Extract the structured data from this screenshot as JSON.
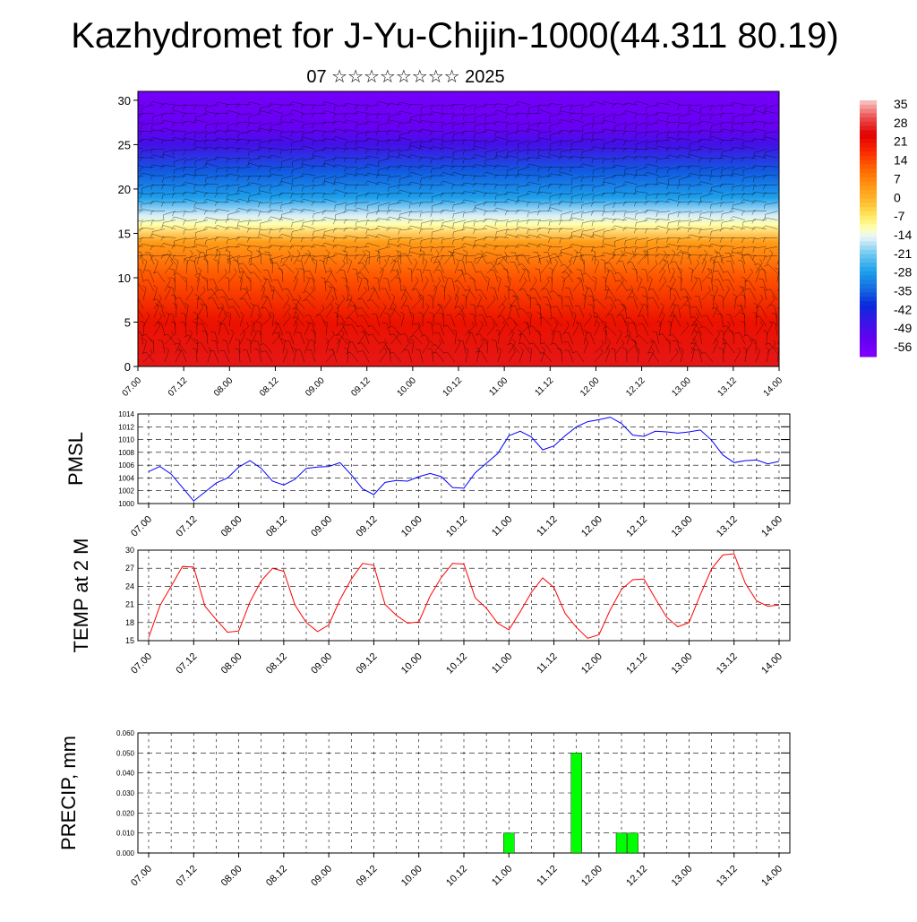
{
  "title": "Kazhydromet for J-Yu-Chijin-1000(44.311 80.19)",
  "subtitle": "07 ☆☆☆☆☆☆☆☆ 2025",
  "time_ticks": [
    "07.00",
    "07.12",
    "08.00",
    "08.12",
    "09.00",
    "09.12",
    "10.00",
    "10.12",
    "11.00",
    "11.12",
    "12.00",
    "12.12",
    "13.00",
    "13.12",
    "14.00"
  ],
  "colorbar": {
    "labels": [
      "35",
      "28",
      "21",
      "14",
      "7",
      "0",
      "-7",
      "-14",
      "-21",
      "-28",
      "-35",
      "-42",
      "-49",
      "-56"
    ]
  },
  "chart_data": [
    {
      "type": "heatmap",
      "name": "upper-air temperature section",
      "y_ticks": [
        "0",
        "5",
        "10",
        "15",
        "20",
        "25",
        "30"
      ],
      "ylim": [
        0,
        31
      ],
      "x": "time_ticks",
      "color_range": [
        -63,
        42
      ],
      "temperature_profile": [
        [
          0,
          30
        ],
        [
          5,
          25
        ],
        [
          10,
          16
        ],
        [
          14,
          6
        ],
        [
          16,
          -10
        ],
        [
          17,
          -15
        ],
        [
          19,
          -28
        ],
        [
          22,
          -37
        ],
        [
          25,
          -50
        ],
        [
          27,
          -57
        ],
        [
          31,
          -60
        ]
      ]
    },
    {
      "type": "line",
      "ylabel": "PMSL",
      "ylim": [
        1000,
        1014
      ],
      "y_ticks": [
        "1014",
        "1012",
        "1010",
        "1008",
        "1006",
        "1004",
        "1002",
        "1000"
      ],
      "color": "#0000ff",
      "values": [
        1005.0,
        1005.8,
        1004.6,
        1002.5,
        1000.4,
        1001.8,
        1003.2,
        1004.0,
        1005.7,
        1006.7,
        1005.5,
        1003.5,
        1002.9,
        1003.8,
        1005.5,
        1005.7,
        1005.8,
        1006.4,
        1004.5,
        1002.3,
        1001.4,
        1003.3,
        1003.6,
        1003.5,
        1004.2,
        1004.7,
        1004.2,
        1002.5,
        1002.4,
        1004.8,
        1006.3,
        1007.8,
        1010.6,
        1011.3,
        1010.4,
        1008.4,
        1009.0,
        1010.6,
        1012.0,
        1012.8,
        1013.1,
        1013.5,
        1012.5,
        1010.7,
        1010.5,
        1011.3,
        1011.2,
        1011.0,
        1011.2,
        1011.5,
        1009.9,
        1007.6,
        1006.4,
        1006.7,
        1006.8,
        1006.2,
        1006.6
      ]
    },
    {
      "type": "line",
      "ylabel": "TEMP at 2 M",
      "ylim": [
        15,
        30
      ],
      "y_ticks": [
        "30",
        "27",
        "24",
        "21",
        "18",
        "15"
      ],
      "color": "#ff0000",
      "values": [
        15.5,
        20.8,
        24.0,
        27.3,
        27.2,
        20.7,
        18.5,
        16.4,
        16.6,
        21.4,
        24.9,
        27.0,
        26.5,
        20.9,
        18.0,
        16.5,
        17.6,
        21.8,
        25.2,
        27.8,
        27.5,
        21.0,
        19.2,
        17.9,
        18.1,
        22.4,
        25.5,
        27.8,
        27.7,
        22.1,
        20.4,
        17.9,
        16.8,
        19.8,
        23.0,
        25.4,
        23.8,
        19.5,
        17.2,
        15.4,
        16.0,
        20.1,
        23.5,
        25.1,
        25.2,
        22.0,
        18.9,
        17.3,
        18.0,
        22.6,
        26.9,
        29.2,
        29.4,
        24.5,
        21.6,
        20.7,
        20.9
      ]
    },
    {
      "type": "bar",
      "ylabel": "PRECIP, mm",
      "ylim": [
        0,
        0.06
      ],
      "y_ticks": [
        "0.060",
        "0.050",
        "0.040",
        "0.030",
        "0.020",
        "0.010",
        "0.000"
      ],
      "color": "#00ff00",
      "bars": [
        {
          "x": 11.0,
          "value": 0.01
        },
        {
          "x": 11.75,
          "value": 0.05
        },
        {
          "x": 12.25,
          "value": 0.01
        },
        {
          "x": 12.375,
          "value": 0.01
        }
      ]
    }
  ]
}
